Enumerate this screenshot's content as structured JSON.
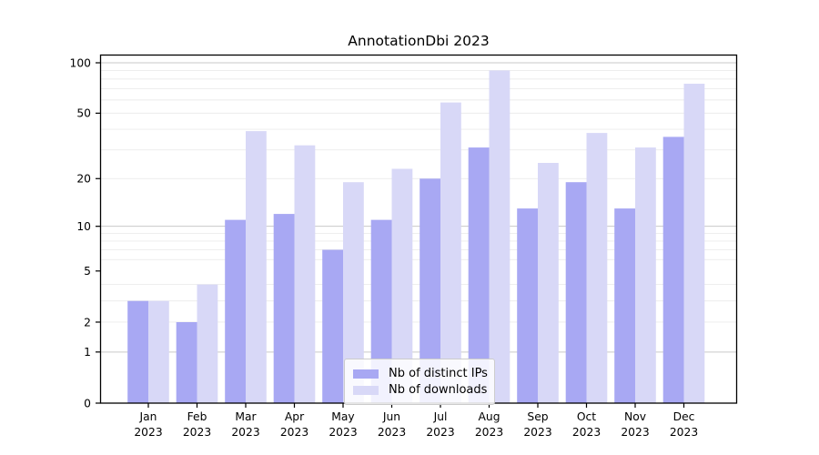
{
  "chart_data": {
    "type": "bar",
    "title": "AnnotationDbi 2023",
    "categories": [
      {
        "month": "Jan",
        "year": "2023"
      },
      {
        "month": "Feb",
        "year": "2023"
      },
      {
        "month": "Mar",
        "year": "2023"
      },
      {
        "month": "Apr",
        "year": "2023"
      },
      {
        "month": "May",
        "year": "2023"
      },
      {
        "month": "Jun",
        "year": "2023"
      },
      {
        "month": "Jul",
        "year": "2023"
      },
      {
        "month": "Aug",
        "year": "2023"
      },
      {
        "month": "Sep",
        "year": "2023"
      },
      {
        "month": "Oct",
        "year": "2023"
      },
      {
        "month": "Nov",
        "year": "2023"
      },
      {
        "month": "Dec",
        "year": "2023"
      }
    ],
    "series": [
      {
        "name": "Nb of distinct IPs",
        "color": "#a8a8f3",
        "values": [
          3,
          2,
          11,
          12,
          7,
          11,
          20,
          31,
          13,
          19,
          13,
          36
        ]
      },
      {
        "name": "Nb of downloads",
        "color": "#d8d8f7",
        "values": [
          3,
          4,
          39,
          32,
          19,
          23,
          58,
          90,
          25,
          38,
          31,
          75
        ]
      }
    ],
    "xlabel": "",
    "ylabel": "",
    "yscale": "symlog",
    "ylim": [
      0,
      111
    ],
    "yticks": [
      0,
      1,
      2,
      5,
      10,
      20,
      50,
      100
    ],
    "yticks_decade_grid": [
      1,
      10,
      100
    ],
    "yticks_minor_grid": [
      2,
      3,
      4,
      6,
      7,
      8,
      9,
      20,
      30,
      40,
      50,
      60,
      70,
      80,
      90
    ],
    "grid": "horizontal",
    "legend_position": "lower center"
  },
  "colors": {
    "spine": "#000000",
    "grid_decade": "#c9c9c9",
    "grid_minor": "#ebebeb",
    "text": "#000000",
    "background": "#ffffff"
  }
}
